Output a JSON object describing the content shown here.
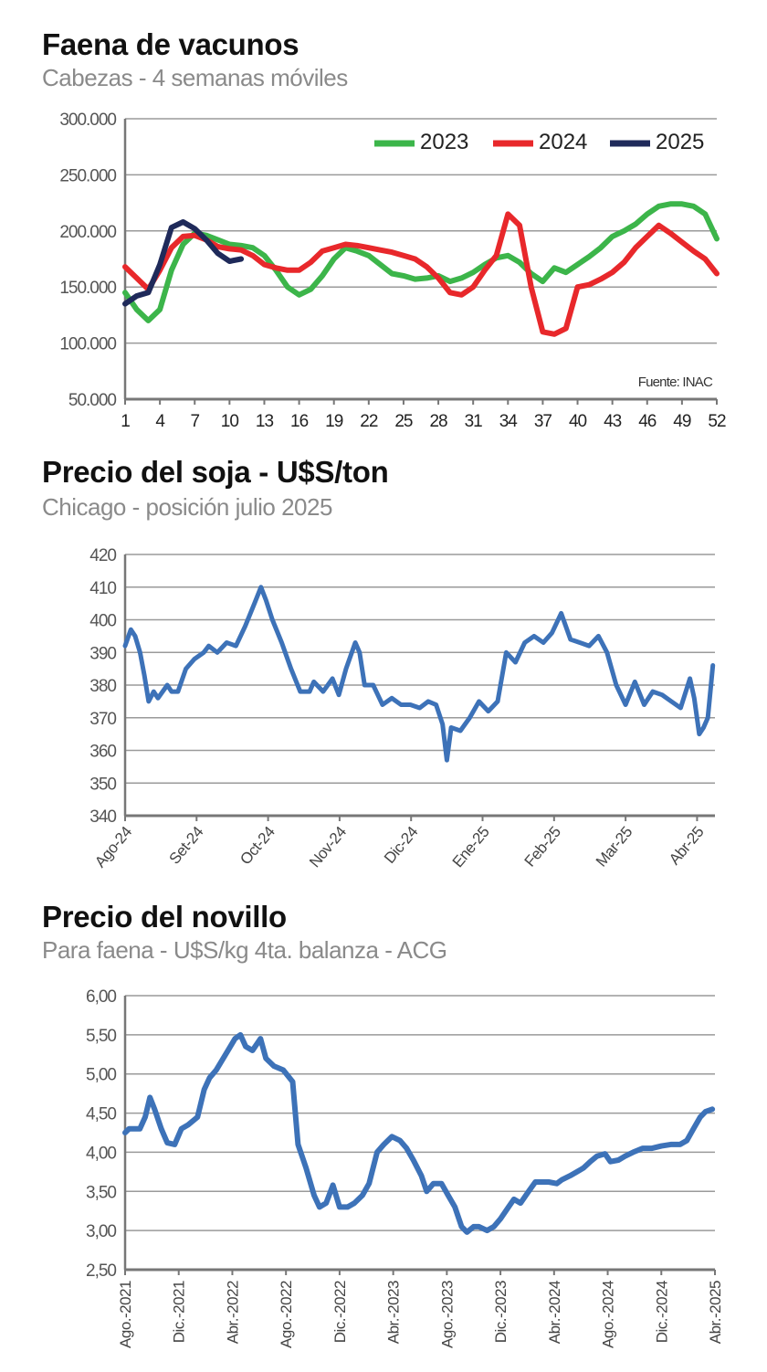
{
  "chart_data": [
    {
      "type": "line",
      "title": "Faena de vacunos",
      "subtitle": "Cabezas - 4 semanas móviles",
      "source_note": "Fuente: INAC",
      "xlabel": "",
      "ylabel": "",
      "ylim": [
        50000,
        300000
      ],
      "yticks": [
        "50.000",
        "100.000",
        "150.000",
        "200.000",
        "250.000",
        "300.000"
      ],
      "xlim": [
        1,
        52
      ],
      "xticks": [
        "1",
        "4",
        "7",
        "10",
        "13",
        "16",
        "19",
        "22",
        "25",
        "28",
        "31",
        "34",
        "37",
        "40",
        "43",
        "46",
        "49",
        "52"
      ],
      "grid": true,
      "legend_position": "top-right",
      "series": [
        {
          "name": "2023",
          "color": "#3cb54a",
          "values": [
            145000,
            130000,
            120000,
            130000,
            165000,
            188000,
            198000,
            196000,
            192000,
            188000,
            187000,
            185000,
            178000,
            165000,
            150000,
            143000,
            148000,
            160000,
            175000,
            185000,
            182000,
            178000,
            170000,
            162000,
            160000,
            157000,
            158000,
            160000,
            155000,
            158000,
            163000,
            170000,
            176000,
            178000,
            172000,
            162000,
            155000,
            167000,
            163000,
            170000,
            177000,
            185000,
            195000,
            200000,
            206000,
            215000,
            222000,
            224000,
            224000,
            222000,
            215000,
            193000
          ]
        },
        {
          "name": "2024",
          "color": "#e8282b",
          "values": [
            168000,
            158000,
            148000,
            165000,
            185000,
            195000,
            196000,
            192000,
            186000,
            184000,
            183000,
            178000,
            170000,
            167000,
            165000,
            165000,
            172000,
            182000,
            185000,
            188000,
            187000,
            185000,
            183000,
            181000,
            178000,
            175000,
            168000,
            158000,
            145000,
            143000,
            150000,
            165000,
            178000,
            215000,
            205000,
            150000,
            110000,
            108000,
            113000,
            150000,
            152000,
            157000,
            163000,
            172000,
            185000,
            195000,
            205000,
            198000,
            190000,
            182000,
            175000,
            162000
          ]
        },
        {
          "name": "2025",
          "color": "#1f2a5a",
          "values": [
            135000,
            142000,
            145000,
            170000,
            203000,
            208000,
            202000,
            192000,
            180000,
            173000,
            175000
          ]
        }
      ]
    },
    {
      "type": "line",
      "title": "Precio del soja - U$S/ton",
      "subtitle": "Chicago - posición julio 2025",
      "ylim": [
        340,
        420
      ],
      "yticks": [
        "340",
        "350",
        "360",
        "370",
        "380",
        "390",
        "400",
        "410",
        "420"
      ],
      "xlim": [
        0,
        8.25
      ],
      "xticks": [
        "Ago-24",
        "Set-24",
        "Oct-24",
        "Nov-24",
        "Dic-24",
        "Ene-25",
        "Feb-25",
        "Mar-25",
        "Abr-25"
      ],
      "x_unit": "months since Ago-24",
      "grid": true,
      "series": [
        {
          "name": "Soja",
          "color": "#3d72b8",
          "points": [
            [
              0,
              392
            ],
            [
              0.08,
              397
            ],
            [
              0.14,
              395
            ],
            [
              0.21,
              390
            ],
            [
              0.27,
              383
            ],
            [
              0.33,
              375
            ],
            [
              0.4,
              378
            ],
            [
              0.46,
              376
            ],
            [
              0.59,
              380
            ],
            [
              0.65,
              378
            ],
            [
              0.74,
              378
            ],
            [
              0.85,
              385
            ],
            [
              0.97,
              388
            ],
            [
              1.1,
              390
            ],
            [
              1.17,
              392
            ],
            [
              1.29,
              390
            ],
            [
              1.42,
              393
            ],
            [
              1.55,
              392
            ],
            [
              1.68,
              398
            ],
            [
              1.81,
              405
            ],
            [
              1.9,
              410
            ],
            [
              1.97,
              406
            ],
            [
              2.06,
              400
            ],
            [
              2.19,
              393
            ],
            [
              2.32,
              385
            ],
            [
              2.45,
              378
            ],
            [
              2.58,
              378
            ],
            [
              2.64,
              381
            ],
            [
              2.77,
              378
            ],
            [
              2.9,
              382
            ],
            [
              2.99,
              377
            ],
            [
              3.09,
              385
            ],
            [
              3.22,
              393
            ],
            [
              3.28,
              390
            ],
            [
              3.35,
              380
            ],
            [
              3.47,
              380
            ],
            [
              3.6,
              374
            ],
            [
              3.73,
              376
            ],
            [
              3.86,
              374
            ],
            [
              3.99,
              374
            ],
            [
              4.12,
              373
            ],
            [
              4.24,
              375
            ],
            [
              4.35,
              374
            ],
            [
              4.44,
              368
            ],
            [
              4.5,
              357
            ],
            [
              4.56,
              367
            ],
            [
              4.69,
              366
            ],
            [
              4.82,
              370
            ],
            [
              4.95,
              375
            ],
            [
              5.08,
              372
            ],
            [
              5.21,
              375
            ],
            [
              5.33,
              390
            ],
            [
              5.46,
              387
            ],
            [
              5.59,
              393
            ],
            [
              5.72,
              395
            ],
            [
              5.85,
              393
            ],
            [
              5.97,
              396
            ],
            [
              6.1,
              402
            ],
            [
              6.23,
              394
            ],
            [
              6.36,
              393
            ],
            [
              6.49,
              392
            ],
            [
              6.62,
              395
            ],
            [
              6.74,
              390
            ],
            [
              6.87,
              380
            ],
            [
              7.0,
              374
            ],
            [
              7.13,
              381
            ],
            [
              7.26,
              374
            ],
            [
              7.38,
              378
            ],
            [
              7.51,
              377
            ],
            [
              7.64,
              375
            ],
            [
              7.77,
              373
            ],
            [
              7.9,
              382
            ],
            [
              7.96,
              376
            ],
            [
              8.03,
              365
            ],
            [
              8.09,
              367
            ],
            [
              8.15,
              370
            ],
            [
              8.22,
              386
            ]
          ]
        }
      ]
    },
    {
      "type": "line",
      "title": "Precio del novillo",
      "subtitle": "Para faena - U$S/kg 4ta. balanza - ACG",
      "ylim": [
        2.5,
        6.0
      ],
      "yticks": [
        "2,50",
        "3,00",
        "3,50",
        "4,00",
        "4,50",
        "5,00",
        "5,50",
        "6,00"
      ],
      "xlim": [
        0,
        44
      ],
      "xticks": [
        "Ago.-2021",
        "Dic.-2021",
        "Abr.-2022",
        "Ago.-2022",
        "Dic.-2022",
        "Abr.-2023",
        "Ago.-2023",
        "Dic.-2023",
        "Abr.-2024",
        "Ago.-2024",
        "Dic.-2024",
        "Abr.-2025"
      ],
      "x_unit": "months since Ago-2021",
      "grid": true,
      "series": [
        {
          "name": "Novillo",
          "color": "#3d72b8",
          "points": [
            [
              0,
              4.25
            ],
            [
              0.3,
              4.3
            ],
            [
              0.6,
              4.3
            ],
            [
              1.1,
              4.3
            ],
            [
              1.5,
              4.45
            ],
            [
              1.85,
              4.7
            ],
            [
              2.2,
              4.55
            ],
            [
              2.7,
              4.3
            ],
            [
              3.15,
              4.12
            ],
            [
              3.7,
              4.1
            ],
            [
              4.2,
              4.3
            ],
            [
              4.7,
              4.35
            ],
            [
              5.4,
              4.45
            ],
            [
              5.9,
              4.8
            ],
            [
              6.3,
              4.95
            ],
            [
              6.8,
              5.05
            ],
            [
              7.5,
              5.25
            ],
            [
              8.2,
              5.45
            ],
            [
              8.6,
              5.5
            ],
            [
              9.0,
              5.35
            ],
            [
              9.5,
              5.3
            ],
            [
              10.1,
              5.45
            ],
            [
              10.5,
              5.2
            ],
            [
              11.1,
              5.1
            ],
            [
              11.8,
              5.05
            ],
            [
              12.5,
              4.9
            ],
            [
              12.9,
              4.1
            ],
            [
              13.5,
              3.8
            ],
            [
              14.1,
              3.45
            ],
            [
              14.5,
              3.3
            ],
            [
              15.0,
              3.35
            ],
            [
              15.5,
              3.58
            ],
            [
              16.0,
              3.3
            ],
            [
              16.6,
              3.3
            ],
            [
              17.1,
              3.35
            ],
            [
              17.7,
              3.45
            ],
            [
              18.2,
              3.6
            ],
            [
              18.8,
              4.0
            ],
            [
              19.3,
              4.1
            ],
            [
              19.9,
              4.2
            ],
            [
              20.5,
              4.15
            ],
            [
              21.0,
              4.05
            ],
            [
              21.5,
              3.9
            ],
            [
              22.1,
              3.7
            ],
            [
              22.5,
              3.5
            ],
            [
              23.0,
              3.6
            ],
            [
              23.6,
              3.6
            ],
            [
              24.1,
              3.45
            ],
            [
              24.6,
              3.3
            ],
            [
              25.1,
              3.05
            ],
            [
              25.5,
              2.98
            ],
            [
              26.0,
              3.05
            ],
            [
              26.4,
              3.05
            ],
            [
              27.0,
              3.0
            ],
            [
              27.5,
              3.05
            ],
            [
              28.0,
              3.15
            ],
            [
              28.6,
              3.3
            ],
            [
              29.0,
              3.4
            ],
            [
              29.5,
              3.35
            ],
            [
              30.1,
              3.5
            ],
            [
              30.6,
              3.62
            ],
            [
              31.1,
              3.62
            ],
            [
              31.6,
              3.62
            ],
            [
              32.2,
              3.6
            ],
            [
              32.6,
              3.65
            ],
            [
              33.2,
              3.7
            ],
            [
              33.7,
              3.75
            ],
            [
              34.2,
              3.8
            ],
            [
              34.7,
              3.88
            ],
            [
              35.2,
              3.95
            ],
            [
              35.8,
              3.98
            ],
            [
              36.2,
              3.88
            ],
            [
              36.8,
              3.9
            ],
            [
              37.3,
              3.95
            ],
            [
              37.9,
              4.0
            ],
            [
              38.6,
              4.05
            ],
            [
              39.3,
              4.05
            ],
            [
              40.0,
              4.08
            ],
            [
              40.7,
              4.1
            ],
            [
              41.4,
              4.1
            ],
            [
              41.9,
              4.15
            ],
            [
              42.4,
              4.3
            ],
            [
              42.9,
              4.45
            ],
            [
              43.3,
              4.52
            ],
            [
              43.8,
              4.55
            ]
          ]
        }
      ]
    }
  ]
}
